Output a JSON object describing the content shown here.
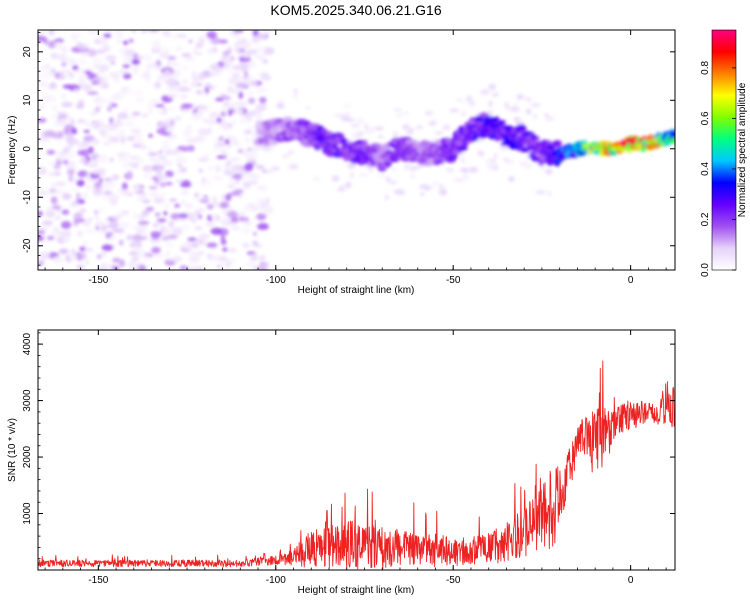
{
  "title": "KOM5.2025.340.06.21.G16",
  "chart_data": [
    {
      "type": "heatmap",
      "xlabel": "Height of straight line (km)",
      "ylabel": "Frequency (Hz)",
      "xlim": [
        -167,
        12.5
      ],
      "ylim": [
        -25,
        24.5
      ],
      "xticks": [
        -150,
        -100,
        -50,
        0
      ],
      "yticks": [
        -20,
        -10,
        0,
        10,
        20
      ],
      "colorbar": {
        "label": "Normalized spectral amplitude",
        "range": [
          0.0,
          0.95
        ],
        "ticks": [
          "0.0",
          "0.2",
          "0.4",
          "0.6",
          "0.8"
        ],
        "colormap": [
          "#ffffff",
          "#e6d2fa",
          "#a050f0",
          "#6400ff",
          "#0000ff",
          "#00c8ff",
          "#00ff80",
          "#80ff00",
          "#ffff00",
          "#ff8000",
          "#ff0000",
          "#ff0080"
        ]
      },
      "ridge": {
        "x": [
          -105,
          -95,
          -90,
          -85,
          -80,
          -75,
          -70,
          -65,
          -60,
          -55,
          -50,
          -45,
          -40,
          -35,
          -30,
          -25,
          -20,
          -15,
          -10,
          -5,
          0,
          5,
          10,
          12.5
        ],
        "freq": [
          3,
          4,
          3,
          1,
          0,
          -1,
          -2,
          0,
          -1,
          -1,
          0,
          4,
          5,
          3,
          2,
          -1,
          -1,
          0,
          0,
          0,
          1,
          1,
          2,
          3
        ],
        "amplitude": [
          0.15,
          0.2,
          0.25,
          0.3,
          0.25,
          0.25,
          0.2,
          0.25,
          0.2,
          0.2,
          0.25,
          0.3,
          0.3,
          0.3,
          0.3,
          0.25,
          0.35,
          0.5,
          0.7,
          0.85,
          0.9,
          0.8,
          0.6,
          0.5
        ]
      }
    },
    {
      "type": "line",
      "xlabel": "Height of straight line (km)",
      "ylabel": "SNR (10 * v/v)",
      "xlim": [
        -167,
        12.5
      ],
      "ylim": [
        0,
        4250
      ],
      "xticks": [
        -150,
        -100,
        -50,
        0
      ],
      "yticks": [
        1000,
        2000,
        3000,
        4000
      ],
      "color": "#ee2222",
      "envelope": {
        "x": [
          -167,
          -140,
          -110,
          -100,
          -95,
          -90,
          -85,
          -80,
          -75,
          -70,
          -65,
          -60,
          -55,
          -50,
          -45,
          -40,
          -35,
          -30,
          -25,
          -22,
          -20,
          -18,
          -15,
          -12,
          -10,
          -8,
          -5,
          -3,
          0,
          3,
          6,
          8,
          10,
          12.5
        ],
        "base": [
          100,
          100,
          100,
          140,
          180,
          280,
          300,
          300,
          280,
          270,
          270,
          280,
          260,
          250,
          270,
          300,
          380,
          500,
          700,
          900,
          1100,
          1600,
          2100,
          2300,
          2000,
          2200,
          2400,
          2600,
          2650,
          2700,
          2750,
          2700,
          2900,
          2800
        ],
        "spread": [
          120,
          120,
          130,
          170,
          300,
          700,
          800,
          900,
          850,
          750,
          650,
          650,
          600,
          500,
          500,
          550,
          700,
          1000,
          1200,
          1500,
          1300,
          900,
          700,
          800,
          1500,
          1100,
          700,
          500,
          500,
          450,
          350,
          400,
          1000,
          900
        ]
      }
    }
  ]
}
